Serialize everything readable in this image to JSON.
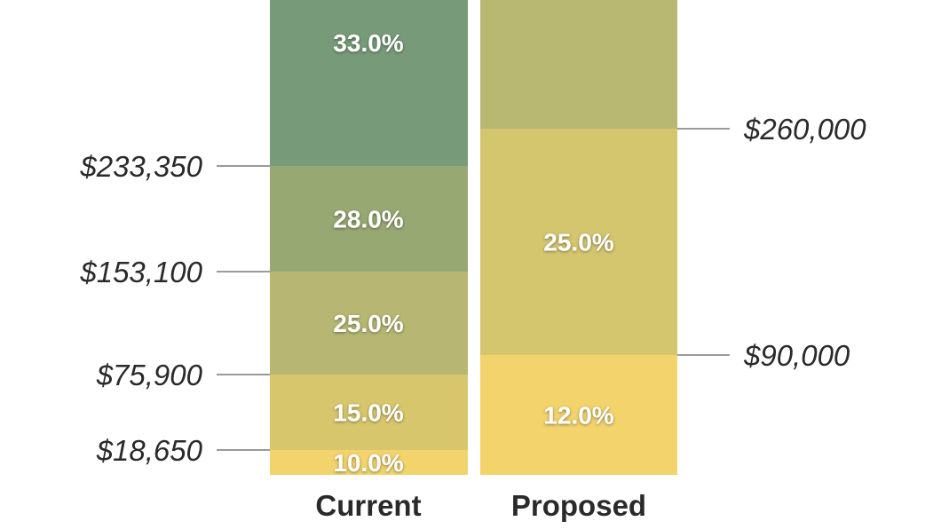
{
  "chart_data": {
    "type": "bar",
    "variant": "stacked-tax-brackets",
    "columns": [
      {
        "name": "Current",
        "thresholds_side": "left",
        "segments": [
          {
            "rate": "10.0%",
            "color": "#f2d36c"
          },
          {
            "rate": "15.0%",
            "color": "#d8c66d"
          },
          {
            "rate": "25.0%",
            "color": "#b7b773"
          },
          {
            "rate": "28.0%",
            "color": "#98a872"
          },
          {
            "rate": "33.0%",
            "color": "#779b78"
          }
        ],
        "thresholds": [
          "$18,650",
          "$75,900",
          "$153,100",
          "$233,350"
        ]
      },
      {
        "name": "Proposed",
        "thresholds_side": "right",
        "segments": [
          {
            "rate": "12.0%",
            "color": "#f2d36c"
          },
          {
            "rate": "25.0%",
            "color": "#d4c66f"
          },
          {
            "rate": "",
            "color": "#b8b873"
          }
        ],
        "thresholds": [
          "$90,000",
          "$260,000"
        ]
      }
    ]
  }
}
